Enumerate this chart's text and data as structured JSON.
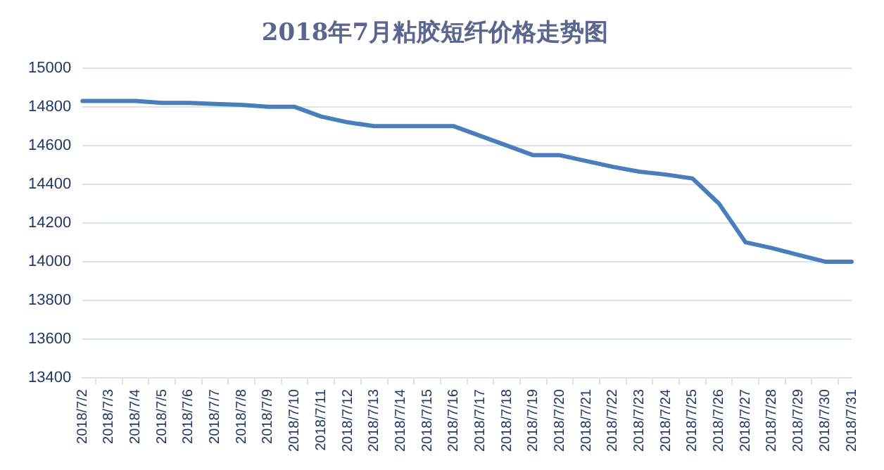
{
  "chart_data": {
    "type": "line",
    "title": "2018年7月粘胶短纤价格走势图",
    "categories": [
      "2018/7/2",
      "2018/7/3",
      "2018/7/4",
      "2018/7/5",
      "2018/7/6",
      "2018/7/7",
      "2018/7/8",
      "2018/7/9",
      "2018/7/10",
      "2018/7/11",
      "2018/7/12",
      "2018/7/13",
      "2018/7/14",
      "2018/7/15",
      "2018/7/16",
      "2018/7/17",
      "2018/7/18",
      "2018/7/19",
      "2018/7/20",
      "2018/7/21",
      "2018/7/22",
      "2018/7/23",
      "2018/7/24",
      "2018/7/25",
      "2018/7/26",
      "2018/7/27",
      "2018/7/28",
      "2018/7/29",
      "2018/7/30",
      "2018/7/31"
    ],
    "series": [
      {
        "color": "#4a7ebb",
        "values": [
          14830,
          14830,
          14830,
          14820,
          14820,
          14815,
          14810,
          14800,
          14800,
          14750,
          14720,
          14700,
          14700,
          14700,
          14700,
          14650,
          14600,
          14550,
          14550,
          14520,
          14490,
          14465,
          14450,
          14430,
          14300,
          14100,
          14070,
          14035,
          14000,
          14000
        ]
      }
    ],
    "ylim": [
      13400,
      15000
    ],
    "yticks": [
      13400,
      13600,
      13800,
      14000,
      14200,
      14400,
      14600,
      14800,
      15000
    ],
    "grid": "y",
    "legend": false,
    "marker": "none",
    "line_style": "solid"
  }
}
